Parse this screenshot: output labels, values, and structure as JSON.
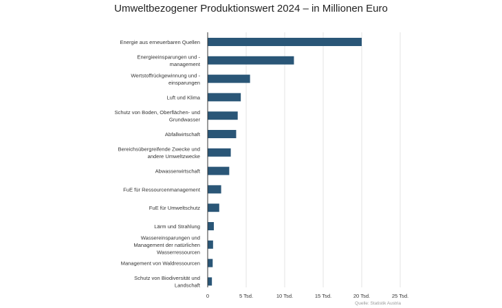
{
  "chart_data": {
    "type": "bar",
    "orientation": "horizontal",
    "title": "Umweltbezogener Produktionswert 2024 – in Millionen Euro",
    "source": "Quelle: Statistik Austria",
    "bar_color": "#2a5677",
    "grid": true,
    "xlim": [
      0,
      25000
    ],
    "x_ticks": [
      0,
      5000,
      10000,
      15000,
      20000,
      25000
    ],
    "x_tick_labels": [
      "0",
      "5 Tsd.",
      "10 Tsd.",
      "15 Tsd.",
      "20 Tsd.",
      "25 Tsd."
    ],
    "categories": [
      [
        "Energie aus erneuerbaren Quellen"
      ],
      [
        "Energieeinsparungen und -",
        "management"
      ],
      [
        "Wertstoffrückgewinnung und -",
        "einsparungen"
      ],
      [
        "Luft und Klima"
      ],
      [
        "Schutz von Boden, Oberflächen- und",
        "Grundwasser"
      ],
      [
        "Abfallwirtschaft"
      ],
      [
        "Bereichsübergreifende Zwecke und",
        "andere Umweltzwecke"
      ],
      [
        "Abwasserwirtschaft"
      ],
      [
        "FuE für Ressourcenmanagement"
      ],
      [
        "FuE für Umweltschutz"
      ],
      [
        "Lärm und Strahlung"
      ],
      [
        "Wassereinsparungen und",
        "Management der natürlichen",
        "Wasserressourcen"
      ],
      [
        "Management von Waldressourcen"
      ],
      [
        "Schutz von Biodiversität und",
        "Landschaft"
      ]
    ],
    "values": [
      20000,
      11200,
      5500,
      4300,
      3900,
      3700,
      3000,
      2800,
      1750,
      1500,
      800,
      700,
      650,
      550
    ]
  }
}
